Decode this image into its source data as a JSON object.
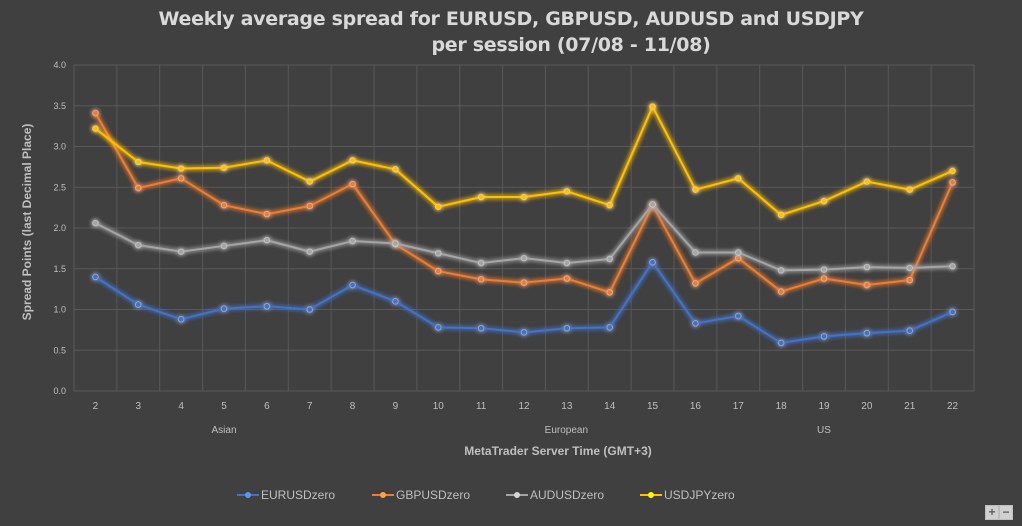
{
  "chart_data": {
    "type": "line",
    "title": "Weekly average spread for EURUSD, GBPUSD, AUDUSD and USDJPY",
    "subtitle": "per session (07/08 - 11/08)",
    "xlabel": "MetaTrader Server Time (GMT+3)",
    "ylabel": "Spread Points  (last Decimal Place)",
    "ylim": [
      0,
      4
    ],
    "yticks": [
      "0.0",
      "0.5",
      "1.0",
      "1.5",
      "2.0",
      "2.5",
      "3.0",
      "3.5",
      "4.0"
    ],
    "categories": [
      "2",
      "3",
      "4",
      "5",
      "6",
      "7",
      "8",
      "9",
      "10",
      "11",
      "12",
      "13",
      "14",
      "15",
      "16",
      "17",
      "18",
      "19",
      "20",
      "21",
      "22"
    ],
    "session_labels": [
      {
        "label": "Asian",
        "at_category": "5"
      },
      {
        "label": "European",
        "at_category": "13"
      },
      {
        "label": "US",
        "at_category": "19"
      }
    ],
    "grid": true,
    "legend_position": "bottom",
    "series": [
      {
        "name": "EURUSDzero",
        "color": "#4472c4",
        "values": [
          1.4,
          1.06,
          0.88,
          1.01,
          1.04,
          1.0,
          1.3,
          1.1,
          0.78,
          0.77,
          0.72,
          0.77,
          0.78,
          1.58,
          0.83,
          0.92,
          0.59,
          0.67,
          0.71,
          0.74,
          0.97
        ]
      },
      {
        "name": "GBPUSDzero",
        "color": "#ed7d31",
        "values": [
          3.41,
          2.49,
          2.61,
          2.28,
          2.17,
          2.27,
          2.54,
          1.8,
          1.47,
          1.37,
          1.33,
          1.38,
          1.21,
          2.28,
          1.32,
          1.63,
          1.22,
          1.38,
          1.3,
          1.36,
          2.56
        ]
      },
      {
        "name": "AUDUSDzero",
        "color": "#a5a5a5",
        "values": [
          2.06,
          1.79,
          1.71,
          1.78,
          1.85,
          1.71,
          1.84,
          1.81,
          1.69,
          1.57,
          1.63,
          1.57,
          1.62,
          2.29,
          1.7,
          1.7,
          1.48,
          1.49,
          1.52,
          1.51,
          1.53
        ]
      },
      {
        "name": "USDJPYzero",
        "color": "#ffc000",
        "values": [
          3.22,
          2.81,
          2.73,
          2.74,
          2.83,
          2.57,
          2.83,
          2.72,
          2.26,
          2.38,
          2.38,
          2.45,
          2.28,
          3.49,
          2.47,
          2.61,
          2.16,
          2.33,
          2.57,
          2.47,
          2.7
        ]
      }
    ]
  },
  "controls": {
    "zoom_in": "+",
    "zoom_out": "−"
  }
}
